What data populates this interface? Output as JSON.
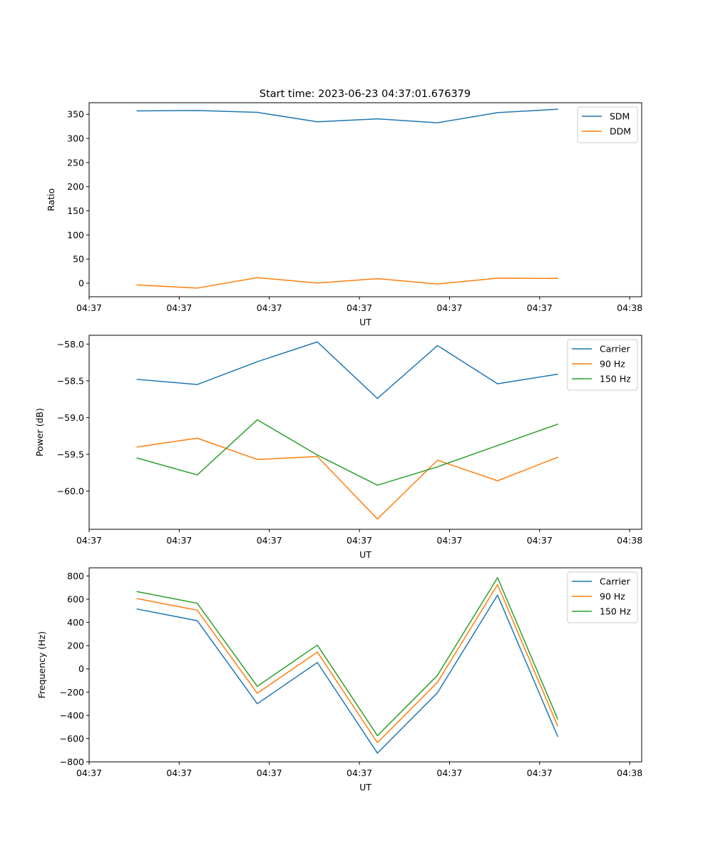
{
  "figure": {
    "title": "Start time: 2023-06-23 04:37:01.676379"
  },
  "colors": {
    "blue": "#1f77b4",
    "orange": "#ff7f0e",
    "green": "#2ca02c"
  },
  "chart_data": [
    {
      "type": "line",
      "title": "Start time: 2023-06-23 04:37:01.676379",
      "xlabel": "UT",
      "ylabel": "Ratio",
      "x": [
        1,
        2,
        3,
        4,
        5,
        6,
        7,
        8
      ],
      "xlim": [
        0.2,
        9.4
      ],
      "x_ticks": [
        0.2,
        1.7,
        3.2,
        4.7,
        6.2,
        7.7,
        9.2
      ],
      "x_tick_labels": [
        "04:37",
        "04:37",
        "04:37",
        "04:37",
        "04:37",
        "04:37",
        "04:38"
      ],
      "ylim": [
        -28,
        374
      ],
      "y_ticks": [
        0,
        50,
        100,
        150,
        200,
        250,
        300,
        350
      ],
      "y_tick_labels": [
        "0",
        "50",
        "100",
        "150",
        "200",
        "250",
        "300",
        "350"
      ],
      "grid": false,
      "legend": "upper right",
      "series": [
        {
          "name": "SDM",
          "color": "#1f77b4",
          "values": [
            357,
            358,
            354,
            334.5,
            340.5,
            332.5,
            353.5,
            360.5
          ]
        },
        {
          "name": "DDM",
          "color": "#ff7f0e",
          "values": [
            -3.5,
            -10,
            11.5,
            0.5,
            9.5,
            -1.5,
            10.5,
            10
          ]
        }
      ]
    },
    {
      "type": "line",
      "title": "",
      "xlabel": "UT",
      "ylabel": "Power (dB)",
      "x": [
        1,
        2,
        3,
        4,
        5,
        6,
        7,
        8
      ],
      "xlim": [
        0.2,
        9.4
      ],
      "x_ticks": [
        0.2,
        1.7,
        3.2,
        4.7,
        6.2,
        7.7,
        9.2
      ],
      "x_tick_labels": [
        "04:37",
        "04:37",
        "04:37",
        "04:37",
        "04:37",
        "04:37",
        "04:38"
      ],
      "ylim": [
        -60.52,
        -57.88
      ],
      "y_ticks": [
        -60.0,
        -59.5,
        -59.0,
        -58.5,
        -58.0
      ],
      "y_tick_labels": [
        "−60.0",
        "−59.5",
        "−59.0",
        "−58.5",
        "−58.0"
      ],
      "grid": false,
      "legend": "upper right",
      "series": [
        {
          "name": "Carrier",
          "color": "#1f77b4",
          "values": [
            -58.48,
            -58.55,
            -58.24,
            -57.97,
            -58.74,
            -58.02,
            -58.54,
            -58.41
          ]
        },
        {
          "name": "90 Hz",
          "color": "#ff7f0e",
          "values": [
            -59.4,
            -59.28,
            -59.57,
            -59.53,
            -60.38,
            -59.58,
            -59.86,
            -59.54
          ]
        },
        {
          "name": "150 Hz",
          "color": "#2ca02c",
          "values": [
            -59.55,
            -59.78,
            -59.03,
            -59.51,
            -59.92,
            -59.67,
            -59.38,
            -59.09
          ]
        }
      ]
    },
    {
      "type": "line",
      "title": "",
      "xlabel": "UT",
      "ylabel": "Frequency (Hz)",
      "x": [
        1,
        2,
        3,
        4,
        5,
        6,
        7,
        8
      ],
      "xlim": [
        0.2,
        9.4
      ],
      "x_ticks": [
        0.2,
        1.7,
        3.2,
        4.7,
        6.2,
        7.7,
        9.2
      ],
      "x_tick_labels": [
        "04:37",
        "04:37",
        "04:37",
        "04:37",
        "04:37",
        "04:37",
        "04:38"
      ],
      "ylim": [
        -800,
        870
      ],
      "y_ticks": [
        -800,
        -600,
        -400,
        -200,
        0,
        200,
        400,
        600,
        800
      ],
      "y_tick_labels": [
        "−800",
        "−600",
        "−400",
        "−200",
        "0",
        "200",
        "400",
        "600",
        "800"
      ],
      "grid": false,
      "legend": "upper right",
      "series": [
        {
          "name": "Carrier",
          "color": "#1f77b4",
          "values": [
            515,
            415,
            -300,
            55,
            -725,
            -205,
            635,
            -580
          ]
        },
        {
          "name": "90 Hz",
          "color": "#ff7f0e",
          "values": [
            605,
            505,
            -210,
            145,
            -635,
            -115,
            725,
            -490
          ]
        },
        {
          "name": "150 Hz",
          "color": "#2ca02c",
          "values": [
            665,
            565,
            -150,
            205,
            -575,
            -55,
            785,
            -430
          ]
        }
      ]
    }
  ]
}
